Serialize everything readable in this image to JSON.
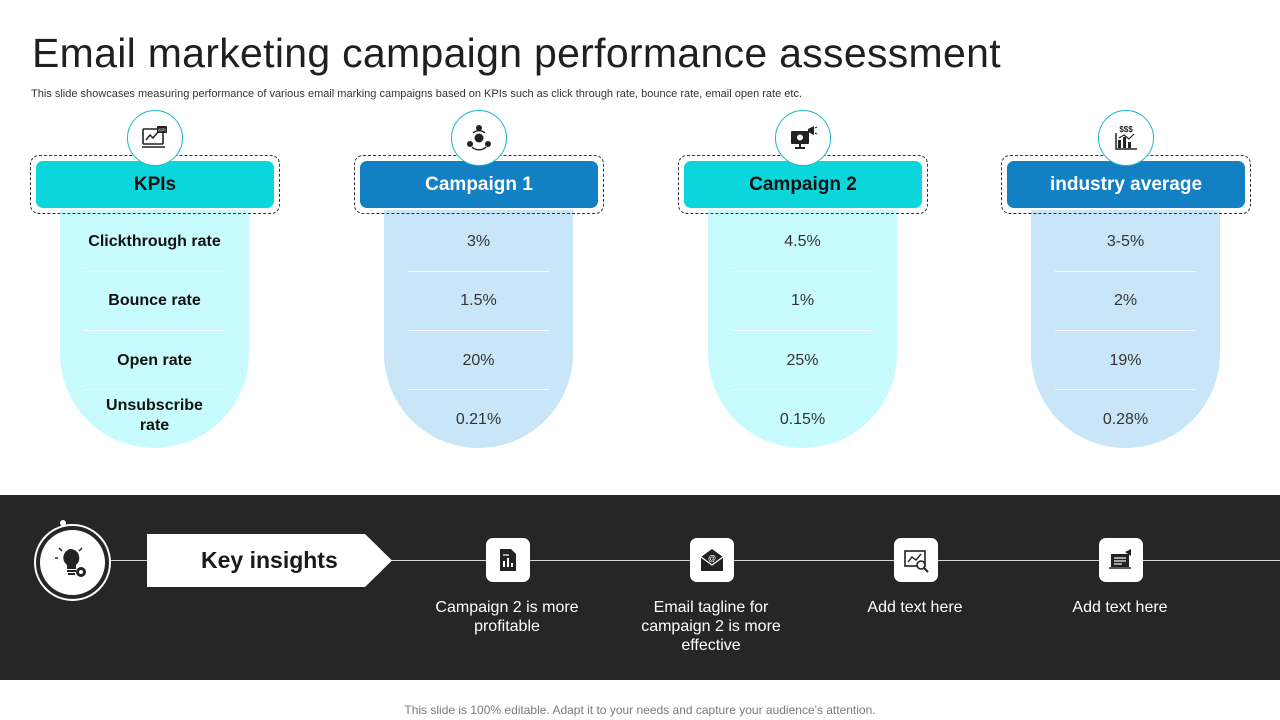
{
  "title": "Email marketing campaign performance assessment",
  "subtitle": "This slide showcases measuring performance of various email marking campaigns based on KPIs such as click through rate, bounce rate, email open rate etc.",
  "columns": [
    {
      "header": "KPIs",
      "icon": "kpi-report-icon",
      "cells": [
        "Clickthrough rate",
        "Bounce rate",
        "Open rate",
        "Unsubscribe rate"
      ]
    },
    {
      "header": "Campaign 1",
      "icon": "megaphone-network-icon",
      "cells": [
        "3%",
        "1.5%",
        "20%",
        "0.21%"
      ]
    },
    {
      "header": "Campaign 2",
      "icon": "monitor-megaphone-icon",
      "cells": [
        "4.5%",
        "1%",
        "25%",
        "0.15%"
      ]
    },
    {
      "header": "industry average",
      "icon": "dollar-chart-icon",
      "cells": [
        "3-5%",
        "2%",
        "19%",
        "0.28%"
      ]
    }
  ],
  "insights": {
    "label": "Key insights",
    "items": [
      {
        "icon": "report-document-icon",
        "text": "Campaign 2 is more profitable"
      },
      {
        "icon": "email-at-icon",
        "text": "Email tagline for campaign 2 is more effective"
      },
      {
        "icon": "chart-magnifier-icon",
        "text": "Add text here"
      },
      {
        "icon": "presentation-icon",
        "text": "Add text here"
      }
    ]
  },
  "footer": "This slide is 100% editable. Adapt it to your needs and capture your audience's attention.",
  "colors": {
    "cyan": "#0ad6dc",
    "blue": "#1280c2",
    "light_cyan": "#c8fbfd",
    "light_blue": "#c9e6f8",
    "band": "#262626"
  }
}
